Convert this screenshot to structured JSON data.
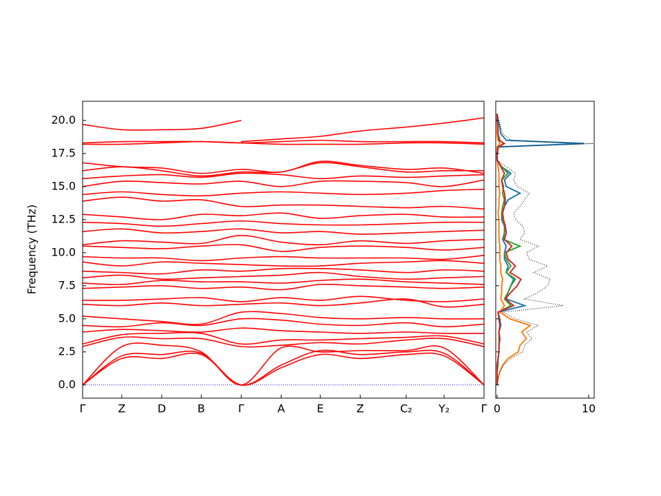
{
  "chart_data": [
    {
      "type": "line",
      "ylabel": "Frequency (THz)",
      "color": "#ff0000",
      "x": [
        0,
        0.98,
        1.98,
        2.97,
        3.97,
        4.97,
        5.95,
        6.95,
        8.1,
        9.05,
        10.05
      ],
      "xlim": [
        0,
        10.05
      ],
      "xticks": [
        {
          "value": 0,
          "label": "Γ"
        },
        {
          "value": 0.98,
          "label": "Z"
        },
        {
          "value": 1.98,
          "label": "D"
        },
        {
          "value": 2.97,
          "label": "B"
        },
        {
          "value": 3.97,
          "label": "Γ"
        },
        {
          "value": 4.97,
          "label": "A"
        },
        {
          "value": 5.95,
          "label": "E"
        },
        {
          "value": 6.95,
          "label": "Z"
        },
        {
          "value": 8.1,
          "label": "C₂"
        },
        {
          "value": 9.05,
          "label": "Y₂"
        },
        {
          "value": 10.05,
          "label": "Γ"
        }
      ],
      "ylim": [
        -1.0,
        21.45
      ],
      "yticks": [
        {
          "value": 0,
          "label": "0.0"
        },
        2.5,
        {
          "value": 5,
          "label": "5.0"
        },
        7.5,
        {
          "value": 10,
          "label": "10.0"
        },
        12.5,
        {
          "value": 15,
          "label": "15.0"
        },
        17.5,
        {
          "value": 20,
          "label": "20.0"
        }
      ],
      "hline": {
        "value": 0,
        "color": "#0000ff"
      },
      "series": [
        {
          "values": [
            0,
            2.0,
            2.0,
            2.3,
            0,
            1.3,
            2.3,
            2.0,
            2.3,
            2.2,
            0
          ]
        },
        {
          "values": [
            0,
            2.2,
            2.3,
            2.4,
            0,
            1.5,
            2.6,
            2.3,
            2.5,
            2.4,
            0
          ]
        },
        {
          "values": [
            0,
            2.9,
            3.0,
            2.5,
            0,
            2.8,
            2.5,
            2.6,
            2.6,
            2.8,
            0
          ]
        },
        {
          "values": [
            2.9,
            3.6,
            3.5,
            3.5,
            2.9,
            3.0,
            3.2,
            3.1,
            3.4,
            3.5,
            2.9
          ]
        },
        {
          "values": [
            3.1,
            3.8,
            3.9,
            3.9,
            3.1,
            3.4,
            3.4,
            3.5,
            3.6,
            3.7,
            3.1
          ]
        },
        {
          "values": [
            4.0,
            4.2,
            4.1,
            4.0,
            4.3,
            4.1,
            4.0,
            3.9,
            4.0,
            3.9,
            3.9
          ]
        },
        {
          "values": [
            4.5,
            4.4,
            4.7,
            4.5,
            5.0,
            4.9,
            4.6,
            4.5,
            4.7,
            4.4,
            4.6
          ]
        },
        {
          "values": [
            5.2,
            5.0,
            4.8,
            4.6,
            5.5,
            5.4,
            5.1,
            5.0,
            5.1,
            5.0,
            5.0
          ]
        },
        {
          "values": [
            6.1,
            6.0,
            6.2,
            6.0,
            6.1,
            6.2,
            6.0,
            6.2,
            6.5,
            5.9,
            6.1
          ]
        },
        {
          "values": [
            6.4,
            6.4,
            6.5,
            6.6,
            6.3,
            6.6,
            6.4,
            6.7,
            6.4,
            6.3,
            6.5
          ]
        },
        {
          "values": [
            7.3,
            7.4,
            7.5,
            7.3,
            7.4,
            7.2,
            7.6,
            7.5,
            7.4,
            7.3,
            7.4
          ]
        },
        {
          "values": [
            7.7,
            7.6,
            7.9,
            7.8,
            7.8,
            7.7,
            7.9,
            8.0,
            7.8,
            7.7,
            7.6
          ]
        },
        {
          "values": [
            8.1,
            8.3,
            8.0,
            8.1,
            8.2,
            8.3,
            8.5,
            8.2,
            8.0,
            8.1,
            8.2
          ]
        },
        {
          "values": [
            8.6,
            8.5,
            8.4,
            8.7,
            8.6,
            8.8,
            8.8,
            8.7,
            8.5,
            8.7,
            8.6
          ]
        },
        {
          "values": [
            9.3,
            9.0,
            9.3,
            9.2,
            9.1,
            9.0,
            9.0,
            9.2,
            9.3,
            9.4,
            9.2
          ]
        },
        {
          "values": [
            9.7,
            9.6,
            9.6,
            9.4,
            9.6,
            9.7,
            9.6,
            9.6,
            9.6,
            9.5,
            9.8
          ]
        },
        {
          "values": [
            10.5,
            10.4,
            10.3,
            10.5,
            10.6,
            10.1,
            10.4,
            10.5,
            10.4,
            10.2,
            10.4
          ]
        },
        {
          "values": [
            10.6,
            10.9,
            10.8,
            10.7,
            11.3,
            10.8,
            10.6,
            10.9,
            10.7,
            10.9,
            11.0
          ]
        },
        {
          "values": [
            11.6,
            11.8,
            11.5,
            11.6,
            11.8,
            11.5,
            11.6,
            11.4,
            11.5,
            11.6,
            11.7
          ]
        },
        {
          "values": [
            12.3,
            12.2,
            12.0,
            12.2,
            12.4,
            12.2,
            12.1,
            12.1,
            12.2,
            12.3,
            12.3
          ]
        },
        {
          "values": [
            12.9,
            12.7,
            12.5,
            12.9,
            12.8,
            13.0,
            12.6,
            12.8,
            12.9,
            12.7,
            12.7
          ]
        },
        {
          "values": [
            13.9,
            14.2,
            13.9,
            14.0,
            13.5,
            13.6,
            13.6,
            13.5,
            13.4,
            13.5,
            13.3
          ]
        },
        {
          "values": [
            14.4,
            14.6,
            14.4,
            14.3,
            14.5,
            14.6,
            14.5,
            14.4,
            14.5,
            14.7,
            14.8
          ]
        },
        {
          "values": [
            15.0,
            15.4,
            15.3,
            15.2,
            15.4,
            15.0,
            15.4,
            15.4,
            15.3,
            15.0,
            15.5
          ]
        },
        {
          "values": [
            15.6,
            15.8,
            15.9,
            15.7,
            16.0,
            15.9,
            15.6,
            15.8,
            15.7,
            15.8,
            15.9
          ]
        },
        {
          "values": [
            16.2,
            16.5,
            16.2,
            15.8,
            16.1,
            16.1,
            16.8,
            16.5,
            16.1,
            16.2,
            16.2
          ]
        },
        {
          "values": [
            16.8,
            16.5,
            16.4,
            16.0,
            16.3,
            16.1,
            16.9,
            16.6,
            16.3,
            16.4,
            16.0
          ]
        },
        {
          "values": [
            18.2,
            18.2,
            18.3,
            18.4,
            18.3,
            18.2,
            18.2,
            18.2,
            18.3,
            18.3,
            18.2
          ]
        },
        {
          "values": [
            18.3,
            18.4,
            18.4,
            18.4,
            18.3,
            18.4,
            18.5,
            18.4,
            18.4,
            18.4,
            18.3
          ]
        },
        {
          "values": [
            19.7,
            19.3,
            19.3,
            19.4,
            20.0,
            null,
            null,
            null,
            null,
            null,
            null
          ]
        },
        {
          "values": [
            null,
            null,
            null,
            null,
            18.4,
            18.6,
            18.8,
            19.2,
            19.5,
            19.8,
            20.2
          ]
        }
      ]
    },
    {
      "type": "line",
      "orientation": "horizontal",
      "xlim": [
        -0.15,
        10.6
      ],
      "xticks": [
        0,
        10
      ],
      "ylim": [
        -1.0,
        21.45
      ],
      "y": [
        0,
        0.5,
        1,
        1.5,
        2,
        2.5,
        3,
        3.5,
        4,
        4.5,
        5,
        5.5,
        6,
        6.5,
        7,
        7.5,
        8,
        8.5,
        9,
        9.5,
        10,
        10.5,
        11,
        11.5,
        12,
        12.5,
        13,
        13.5,
        14,
        14.5,
        15,
        15.5,
        16,
        16.5,
        17,
        17.5,
        18,
        18.25,
        18.5,
        19,
        19.5,
        20,
        20.5
      ],
      "series": [
        {
          "color": "#000000",
          "style": "dotted",
          "values": [
            0,
            0.1,
            0.3,
            0.7,
            1.5,
            2.8,
            3.0,
            3.8,
            3.2,
            4.5,
            2.0,
            0.6,
            7.2,
            3.0,
            4.5,
            5.5,
            5.8,
            4.0,
            5.5,
            3.5,
            3.2,
            4.5,
            2.5,
            3.0,
            2.8,
            2.0,
            1.8,
            2.5,
            3.0,
            3.5,
            2.2,
            1.8,
            2.0,
            1.0,
            0,
            0,
            0.3,
            10.5,
            1.5,
            0.6,
            0.4,
            0.2,
            0
          ]
        },
        {
          "color": "#1f77b4",
          "values": [
            0,
            0,
            0,
            0,
            0.1,
            0.2,
            0.2,
            0.3,
            0.2,
            0.4,
            0.3,
            0.1,
            3.0,
            1.0,
            1.2,
            1.5,
            1.8,
            1.0,
            1.2,
            0.8,
            0.8,
            1.0,
            0.6,
            0.8,
            0.8,
            0.5,
            0.5,
            0.8,
            1.2,
            2.5,
            1.0,
            0.8,
            1.5,
            0.5,
            0,
            0,
            0.1,
            9.5,
            1.0,
            0.4,
            0.3,
            0.1,
            0
          ]
        },
        {
          "color": "#ff7f0e",
          "values": [
            0,
            0.1,
            0.3,
            0.6,
            1.2,
            2.3,
            2.5,
            3.2,
            2.7,
            3.6,
            1.4,
            0.3,
            0.8,
            0.4,
            0.5,
            0.5,
            0.6,
            0.4,
            0.4,
            0.3,
            0.3,
            0.3,
            0.2,
            0.2,
            0.2,
            0.2,
            0.1,
            0.2,
            0.2,
            0.3,
            0.2,
            0.2,
            0.2,
            0.1,
            0,
            0,
            0,
            0.3,
            0.1,
            0,
            0,
            0,
            0
          ]
        },
        {
          "color": "#2ca02c",
          "values": [
            0,
            0,
            0,
            0.1,
            0.1,
            0.2,
            0.2,
            0.2,
            0.2,
            0.3,
            0.2,
            0.1,
            1.5,
            0.8,
            1.2,
            1.5,
            2.0,
            1.0,
            1.5,
            1.0,
            0.8,
            2.5,
            0.7,
            0.8,
            0.9,
            0.6,
            0.5,
            0.6,
            0.8,
            0.6,
            0.7,
            0.5,
            1.2,
            0.5,
            0,
            0,
            0.1,
            0.7,
            0.3,
            0.1,
            0.1,
            0,
            0
          ]
        },
        {
          "color": "#d62728",
          "values": [
            0,
            0,
            0,
            0,
            0.1,
            0.2,
            0.2,
            0.3,
            0.2,
            0.3,
            0.2,
            0.1,
            1.8,
            0.9,
            1.5,
            2.2,
            2.6,
            1.4,
            2.0,
            1.2,
            1.0,
            1.6,
            0.8,
            1.0,
            0.9,
            0.7,
            0.6,
            0.8,
            0.9,
            0.8,
            0.6,
            0.5,
            0.8,
            0.4,
            0,
            0,
            0.1,
            0.8,
            0.2,
            0.1,
            0.1,
            0,
            0
          ]
        }
      ]
    }
  ]
}
